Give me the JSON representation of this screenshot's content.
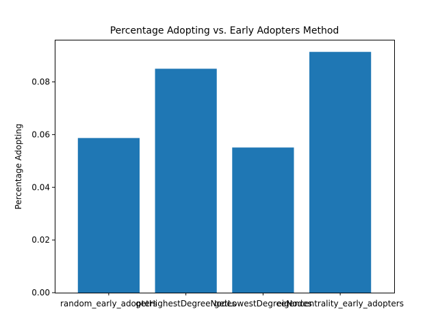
{
  "chart_data": {
    "type": "bar",
    "title": "Percentage Adopting vs. Early Adopters Method",
    "xlabel": "",
    "ylabel": "Percentage Adopting",
    "categories": [
      "random_early_adopters",
      "getHighestDegreeNodes",
      "getLowestDegreeNodes",
      "eigencentrality_early_adopters"
    ],
    "values": [
      0.0587,
      0.085,
      0.0551,
      0.0914
    ],
    "ylim": [
      0,
      0.096
    ],
    "yticks": [
      "0.00",
      "0.02",
      "0.04",
      "0.06",
      "0.08"
    ],
    "bar_color": "#1f77b4",
    "grid": false,
    "legend": "none"
  }
}
